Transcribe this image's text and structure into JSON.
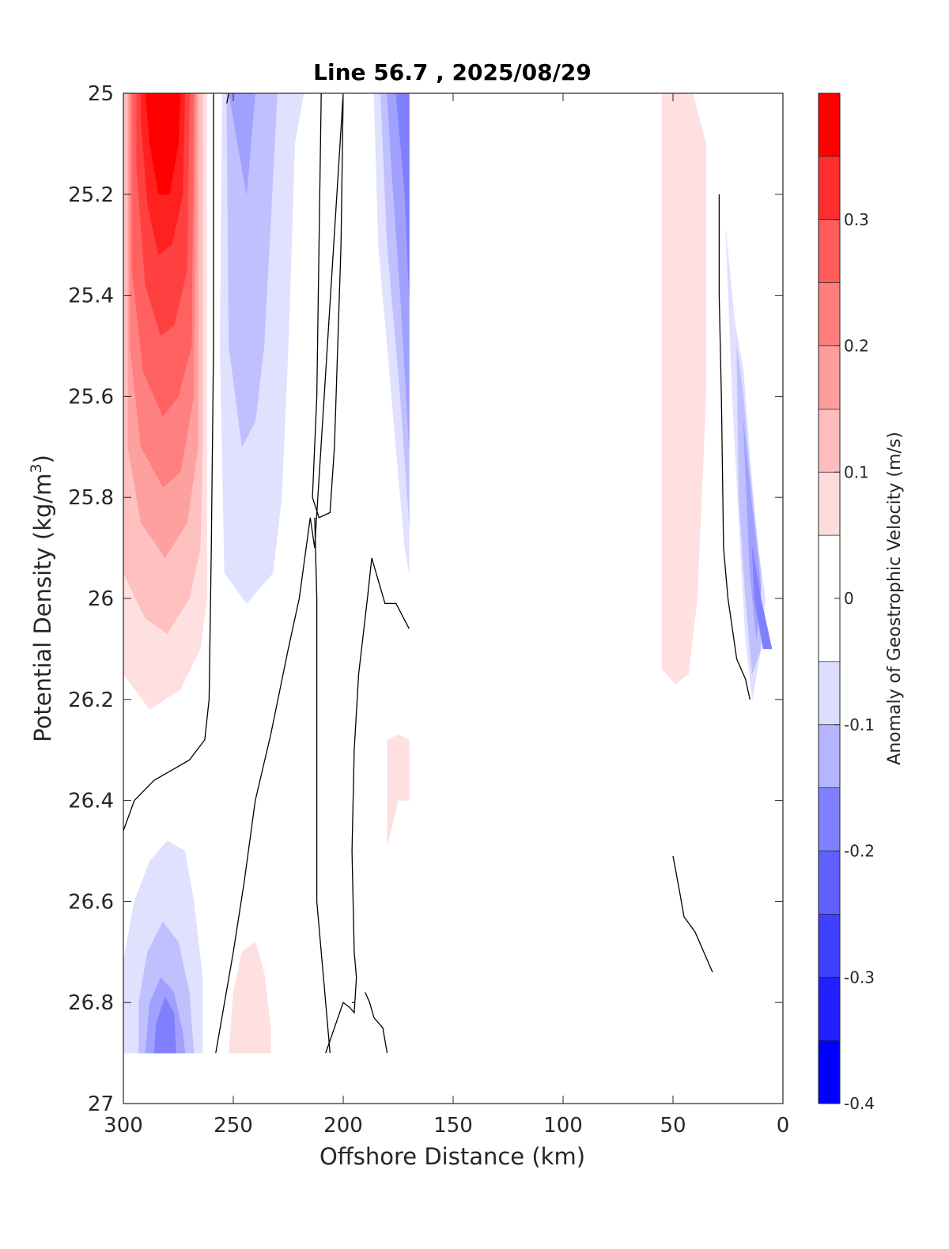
{
  "chart_data": {
    "type": "contour",
    "title": "Line 56.7 , 2025/08/29",
    "xlabel": "Offshore Distance (km)",
    "ylabel": "Potential Density (kg/m",
    "ylabel_superscript": "3",
    "ylabel_suffix": ")",
    "x_axis": {
      "range": [
        300,
        0
      ],
      "reversed": true,
      "ticks": [
        300,
        250,
        200,
        150,
        100,
        50,
        0
      ],
      "tick_labels": [
        "300",
        "250",
        "200",
        "150",
        "100",
        "50",
        "0"
      ]
    },
    "y_axis": {
      "range": [
        25,
        27
      ],
      "reversed": true,
      "ticks": [
        25,
        25.2,
        25.4,
        25.6,
        25.8,
        26,
        26.2,
        26.4,
        26.6,
        26.8,
        27
      ],
      "tick_labels": [
        "25",
        "25.2",
        "25.4",
        "25.6",
        "25.8",
        "26",
        "26.2",
        "26.4",
        "26.6",
        "26.8",
        "27"
      ]
    },
    "colorbar": {
      "label": "Anomaly of Geostrophic Velocity (m/s)",
      "range": [
        -0.4,
        0.4
      ],
      "levels": [
        -0.4,
        -0.35,
        -0.3,
        -0.25,
        -0.2,
        -0.15,
        -0.1,
        -0.05,
        0.05,
        0.1,
        0.15,
        0.2,
        0.25,
        0.3,
        0.35,
        0.4
      ],
      "colors": [
        "#0000ff",
        "#2020ff",
        "#4040ff",
        "#6060ff",
        "#8080ff",
        "#a0a0ff",
        "#c0c0ff",
        "#e0e0ff",
        "#ffffff",
        "#ffe0e0",
        "#ffc0c0",
        "#ffa0a0",
        "#ff8080",
        "#ff6060",
        "#ff4040",
        "#ff2020",
        "#ff0000"
      ],
      "ticks": [
        -0.4,
        -0.3,
        -0.2,
        -0.1,
        0,
        0.1,
        0.2,
        0.3
      ],
      "tick_labels": [
        "-0.4",
        "-0.3",
        "-0.2",
        "-0.1",
        "0",
        "0.1",
        "0.2",
        "0.3"
      ]
    },
    "filled_regions": [
      {
        "name": "red-core-offshore",
        "color": "#ffe0e0",
        "points": [
          [
            300,
            25
          ],
          [
            262,
            25
          ],
          [
            262,
            26
          ],
          [
            265,
            26.1
          ],
          [
            274,
            26.18
          ],
          [
            288,
            26.22
          ],
          [
            300,
            26.15
          ]
        ]
      },
      {
        "name": "red-core-offshore",
        "color": "#ffc0c0",
        "points": [
          [
            300,
            25
          ],
          [
            264,
            25
          ],
          [
            264,
            25.7
          ],
          [
            265,
            25.9
          ],
          [
            270,
            26
          ],
          [
            280,
            26.07
          ],
          [
            290,
            26.04
          ],
          [
            300,
            25.95
          ]
        ]
      },
      {
        "name": "red-core-offshore",
        "color": "#ffa0a0",
        "points": [
          [
            298,
            25
          ],
          [
            266,
            25
          ],
          [
            266,
            25.7
          ],
          [
            271,
            25.85
          ],
          [
            281,
            25.92
          ],
          [
            292,
            25.85
          ],
          [
            298,
            25.7
          ]
        ]
      },
      {
        "name": "red-core-offshore",
        "color": "#ff8080",
        "points": [
          [
            297,
            25
          ],
          [
            267,
            25
          ],
          [
            268,
            25.6
          ],
          [
            274,
            25.75
          ],
          [
            282,
            25.78
          ],
          [
            292,
            25.7
          ],
          [
            297,
            25.5
          ]
        ]
      },
      {
        "name": "red-core-offshore",
        "color": "#ff6060",
        "points": [
          [
            296,
            25
          ],
          [
            268,
            25
          ],
          [
            269,
            25.5
          ],
          [
            275,
            25.6
          ],
          [
            282,
            25.64
          ],
          [
            291,
            25.55
          ],
          [
            296,
            25.35
          ]
        ]
      },
      {
        "name": "red-core-offshore",
        "color": "#ff4040",
        "points": [
          [
            294,
            25
          ],
          [
            270,
            25
          ],
          [
            271,
            25.35
          ],
          [
            277,
            25.46
          ],
          [
            283,
            25.48
          ],
          [
            290,
            25.38
          ],
          [
            294,
            25.15
          ]
        ]
      },
      {
        "name": "red-core-offshore",
        "color": "#ff2020",
        "points": [
          [
            292,
            25
          ],
          [
            272,
            25
          ],
          [
            273,
            25.2
          ],
          [
            278,
            25.3
          ],
          [
            284,
            25.32
          ],
          [
            289,
            25.22
          ],
          [
            292,
            25.05
          ]
        ]
      },
      {
        "name": "red-core-offshore",
        "color": "#ff0000",
        "points": [
          [
            290,
            25
          ],
          [
            274,
            25
          ],
          [
            275,
            25.1
          ],
          [
            279,
            25.2
          ],
          [
            284,
            25.2
          ],
          [
            288,
            25.1
          ]
        ]
      },
      {
        "name": "blue-band-250",
        "color": "#e0e0ff",
        "points": [
          [
            255,
            25
          ],
          [
            218,
            25
          ],
          [
            222,
            25.1
          ],
          [
            225,
            25.5
          ],
          [
            228,
            25.8
          ],
          [
            232,
            25.95
          ],
          [
            244,
            26.01
          ],
          [
            254,
            25.95
          ],
          [
            256,
            25.5
          ]
        ]
      },
      {
        "name": "blue-band-250",
        "color": "#c0c0ff",
        "points": [
          [
            253,
            25
          ],
          [
            230,
            25
          ],
          [
            233,
            25.25
          ],
          [
            236,
            25.5
          ],
          [
            240,
            25.65
          ],
          [
            246,
            25.7
          ],
          [
            252,
            25.5
          ]
        ]
      },
      {
        "name": "blue-band-250",
        "color": "#a0a0ff",
        "points": [
          [
            252,
            25
          ],
          [
            240,
            25
          ],
          [
            244,
            25.2
          ],
          [
            250,
            25.05
          ]
        ]
      },
      {
        "name": "blue-band-175",
        "color": "#e0e0ff",
        "points": [
          [
            186,
            25
          ],
          [
            170,
            25
          ],
          [
            170,
            25.95
          ],
          [
            172,
            25.9
          ],
          [
            178,
            25.6
          ],
          [
            184,
            25.3
          ]
        ]
      },
      {
        "name": "blue-band-175",
        "color": "#c0c0ff",
        "points": [
          [
            183,
            25
          ],
          [
            170,
            25
          ],
          [
            170,
            25.85
          ],
          [
            174,
            25.6
          ],
          [
            180,
            25.3
          ]
        ]
      },
      {
        "name": "blue-band-175",
        "color": "#a0a0ff",
        "points": [
          [
            180,
            25
          ],
          [
            170,
            25
          ],
          [
            170,
            25.7
          ],
          [
            174,
            25.4
          ],
          [
            178,
            25.15
          ]
        ]
      },
      {
        "name": "blue-band-175",
        "color": "#8080ff",
        "points": [
          [
            176,
            25
          ],
          [
            170,
            25
          ],
          [
            170,
            25.4
          ],
          [
            172,
            25.2
          ]
        ]
      },
      {
        "name": "red-patch-nearshore",
        "color": "#ffe0e0",
        "points": [
          [
            55,
            25
          ],
          [
            41,
            25
          ],
          [
            35,
            25.1
          ],
          [
            35,
            25.6
          ],
          [
            39,
            26
          ],
          [
            43,
            26.15
          ],
          [
            49,
            26.17
          ],
          [
            55,
            26.14
          ]
        ]
      },
      {
        "name": "red-patch-mid",
        "color": "#ffe0e0",
        "points": [
          [
            180,
            26.28
          ],
          [
            175,
            26.27
          ],
          [
            170,
            26.28
          ],
          [
            170,
            26.4
          ],
          [
            175,
            26.4
          ],
          [
            180,
            26.49
          ]
        ]
      },
      {
        "name": "blue-patch-coastal",
        "color": "#e0e0ff",
        "points": [
          [
            26,
            25.27
          ],
          [
            22,
            25.45
          ],
          [
            18,
            25.55
          ],
          [
            15,
            25.72
          ],
          [
            12,
            25.88
          ],
          [
            8,
            26.0
          ],
          [
            10,
            26.1
          ],
          [
            14,
            26.2
          ],
          [
            17,
            26.08
          ],
          [
            20,
            25.85
          ],
          [
            23,
            25.6
          ]
        ]
      },
      {
        "name": "blue-patch-coastal",
        "color": "#c0c0ff",
        "points": [
          [
            21,
            25.5
          ],
          [
            18,
            25.6
          ],
          [
            15,
            25.75
          ],
          [
            10,
            25.95
          ],
          [
            10,
            26.1
          ],
          [
            14,
            26.15
          ],
          [
            17,
            26.0
          ],
          [
            20,
            25.8
          ]
        ]
      },
      {
        "name": "blue-patch-coastal",
        "color": "#a0a0ff",
        "points": [
          [
            18,
            25.65
          ],
          [
            15,
            25.78
          ],
          [
            10,
            25.98
          ],
          [
            12,
            26.08
          ],
          [
            15,
            25.95
          ]
        ]
      },
      {
        "name": "blue-patch-coastal",
        "color": "#8080ff",
        "points": [
          [
            14,
            25.9
          ],
          [
            10,
            26.0
          ],
          [
            5,
            26.1
          ],
          [
            9,
            26.1
          ],
          [
            13,
            26.0
          ]
        ]
      },
      {
        "name": "blue-patch-deep",
        "color": "#e0e0ff",
        "points": [
          [
            300,
            26.9
          ],
          [
            300,
            26.72
          ],
          [
            295,
            26.6
          ],
          [
            288,
            26.52
          ],
          [
            280,
            26.48
          ],
          [
            272,
            26.5
          ],
          [
            268,
            26.6
          ],
          [
            264,
            26.75
          ],
          [
            264,
            26.9
          ]
        ]
      },
      {
        "name": "blue-patch-deep",
        "color": "#c0c0ff",
        "points": [
          [
            293,
            26.9
          ],
          [
            293,
            26.8
          ],
          [
            289,
            26.7
          ],
          [
            282,
            26.64
          ],
          [
            275,
            26.68
          ],
          [
            270,
            26.78
          ],
          [
            268,
            26.9
          ]
        ]
      },
      {
        "name": "blue-patch-deep",
        "color": "#a0a0ff",
        "points": [
          [
            290,
            26.9
          ],
          [
            288,
            26.8
          ],
          [
            283,
            26.75
          ],
          [
            277,
            26.78
          ],
          [
            273,
            26.86
          ],
          [
            272,
            26.9
          ]
        ]
      },
      {
        "name": "blue-patch-deep",
        "color": "#8080ff",
        "points": [
          [
            286,
            26.9
          ],
          [
            285,
            26.84
          ],
          [
            281,
            26.79
          ],
          [
            277,
            26.82
          ],
          [
            276,
            26.9
          ]
        ]
      },
      {
        "name": "red-patch-deep",
        "color": "#ffe0e0",
        "points": [
          [
            252,
            26.9
          ],
          [
            250,
            26.78
          ],
          [
            246,
            26.7
          ],
          [
            240,
            26.68
          ],
          [
            236,
            26.74
          ],
          [
            233,
            26.85
          ],
          [
            233,
            26.9
          ]
        ]
      }
    ],
    "zero_contours": [
      {
        "points": [
          [
            259,
            25
          ],
          [
            259,
            25.5
          ],
          [
            260,
            25.9
          ],
          [
            261,
            26.2
          ],
          [
            263,
            26.28
          ],
          [
            270,
            26.32
          ],
          [
            278,
            26.34
          ],
          [
            286,
            26.36
          ],
          [
            295,
            26.4
          ],
          [
            300,
            26.46
          ]
        ]
      },
      {
        "points": [
          [
            252,
            25
          ],
          [
            253,
            25.02
          ]
        ]
      },
      {
        "points": [
          [
            210,
            25
          ],
          [
            211,
            25.3
          ],
          [
            212,
            25.6
          ],
          [
            214,
            25.8
          ],
          [
            211,
            25.84
          ],
          [
            206,
            25.83
          ],
          [
            204,
            25.7
          ],
          [
            201,
            25.3
          ],
          [
            200,
            25
          ],
          [
            213,
            25.9
          ],
          [
            215,
            25.84
          ],
          [
            220,
            26.0
          ],
          [
            225,
            26.1
          ],
          [
            233,
            26.27
          ],
          [
            240,
            26.4
          ],
          [
            245,
            26.56
          ],
          [
            250,
            26.7
          ],
          [
            258,
            26.9
          ]
        ]
      },
      {
        "points": [
          [
            213,
            25.84
          ],
          [
            212,
            26.0
          ],
          [
            212,
            26.3
          ],
          [
            212,
            26.6
          ],
          [
            208,
            26.8
          ],
          [
            206,
            26.9
          ]
        ]
      },
      {
        "points": [
          [
            187,
            25.92
          ],
          [
            181,
            26.01
          ],
          [
            176,
            26.01
          ],
          [
            170,
            26.06
          ]
        ]
      },
      {
        "points": [
          [
            187,
            25.92
          ],
          [
            189,
            26.0
          ],
          [
            193,
            26.15
          ],
          [
            195,
            26.3
          ],
          [
            196,
            26.5
          ],
          [
            195,
            26.7
          ],
          [
            194,
            26.75
          ],
          [
            195,
            26.82
          ],
          [
            197,
            26.81
          ],
          [
            200,
            26.8
          ],
          [
            208,
            26.9
          ]
        ]
      },
      {
        "points": [
          [
            195,
            26.8
          ],
          [
            196,
            26.8
          ]
        ]
      },
      {
        "points": [
          [
            29,
            25.2
          ],
          [
            29,
            25.4
          ],
          [
            28,
            25.6
          ],
          [
            27,
            25.9
          ],
          [
            25,
            26.0
          ],
          [
            21,
            26.12
          ],
          [
            17,
            26.16
          ],
          [
            15,
            26.2
          ]
        ]
      },
      {
        "points": [
          [
            50,
            26.51
          ],
          [
            47,
            26.58
          ],
          [
            45,
            26.63
          ],
          [
            40,
            26.66
          ],
          [
            32,
            26.74
          ]
        ]
      },
      {
        "points": [
          [
            190,
            26.78
          ],
          [
            188,
            26.8
          ],
          [
            186,
            26.83
          ],
          [
            182,
            26.85
          ],
          [
            180,
            26.9
          ]
        ]
      }
    ]
  }
}
